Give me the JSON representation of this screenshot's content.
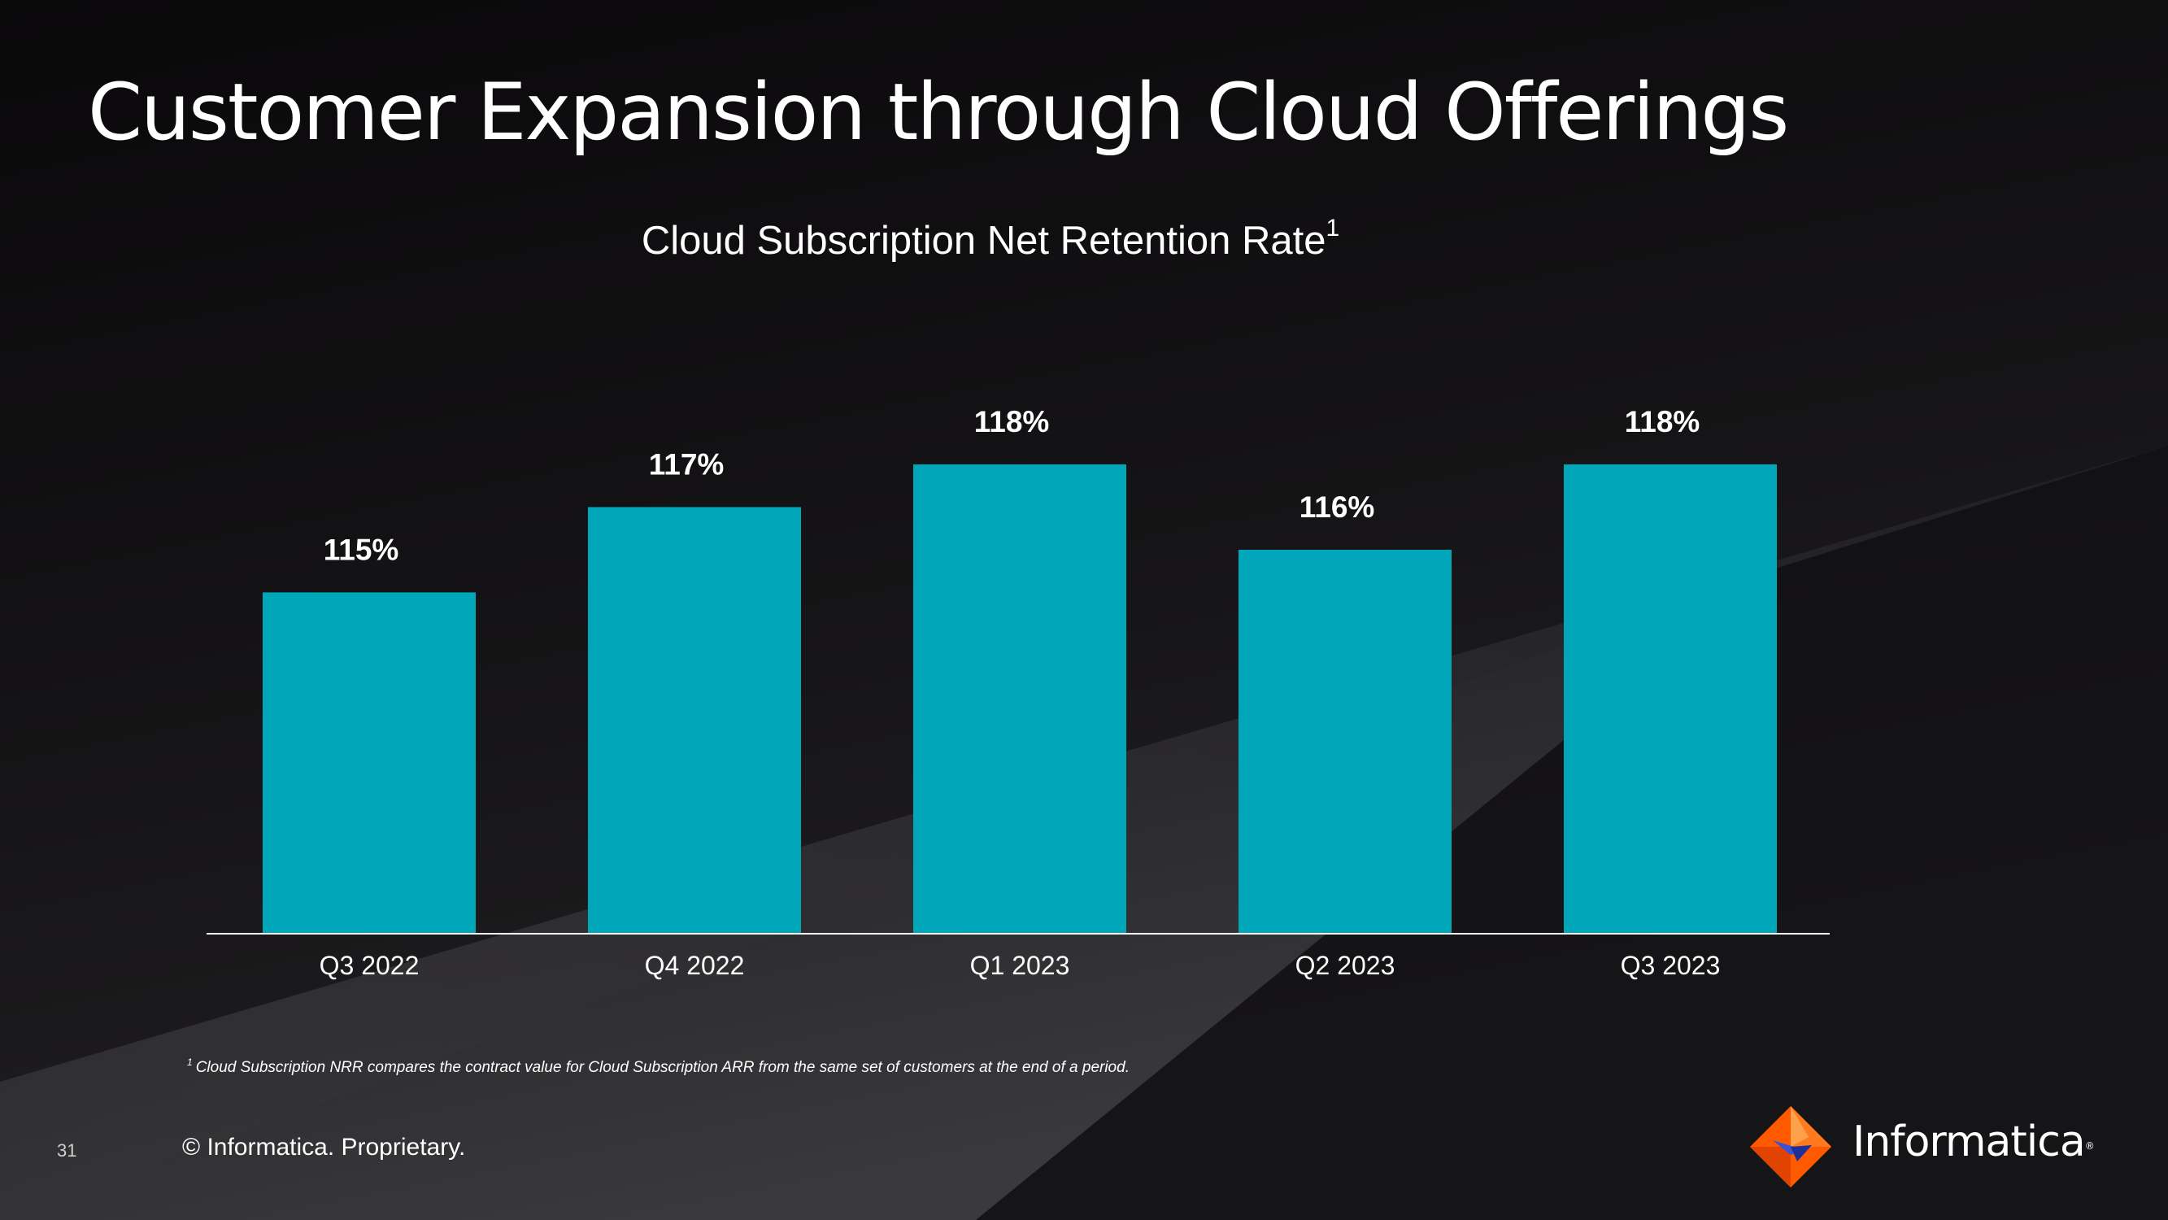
{
  "slide": {
    "title": "Customer Expansion through Cloud Offerings",
    "page_number": "31",
    "copyright": "© Informatica. Proprietary.",
    "logo_text": "Informatica",
    "footnote_marker": "1",
    "footnote": "Cloud Subscription NRR compares the contract value for Cloud Subscription ARR from the same set of customers at the end of a period."
  },
  "colors": {
    "bar": "#00a7bb",
    "background_dark": "#0d0c0e",
    "background_light": "#38373a",
    "logo_orange": "#ff5a00",
    "logo_blue": "#3a52d6"
  },
  "chart_data": {
    "type": "bar",
    "title": "Cloud Subscription Net Retention Rate",
    "title_superscript": "1",
    "categories": [
      "Q3 2022",
      "Q4 2022",
      "Q1 2023",
      "Q2 2023",
      "Q3 2023"
    ],
    "values": [
      115,
      117,
      118,
      116,
      118
    ],
    "data_labels": [
      "115%",
      "117%",
      "118%",
      "116%",
      "118%"
    ],
    "unit": "%",
    "ylim": [
      107,
      118
    ],
    "xlabel": "",
    "ylabel": "",
    "grid": false,
    "legend": "none"
  }
}
